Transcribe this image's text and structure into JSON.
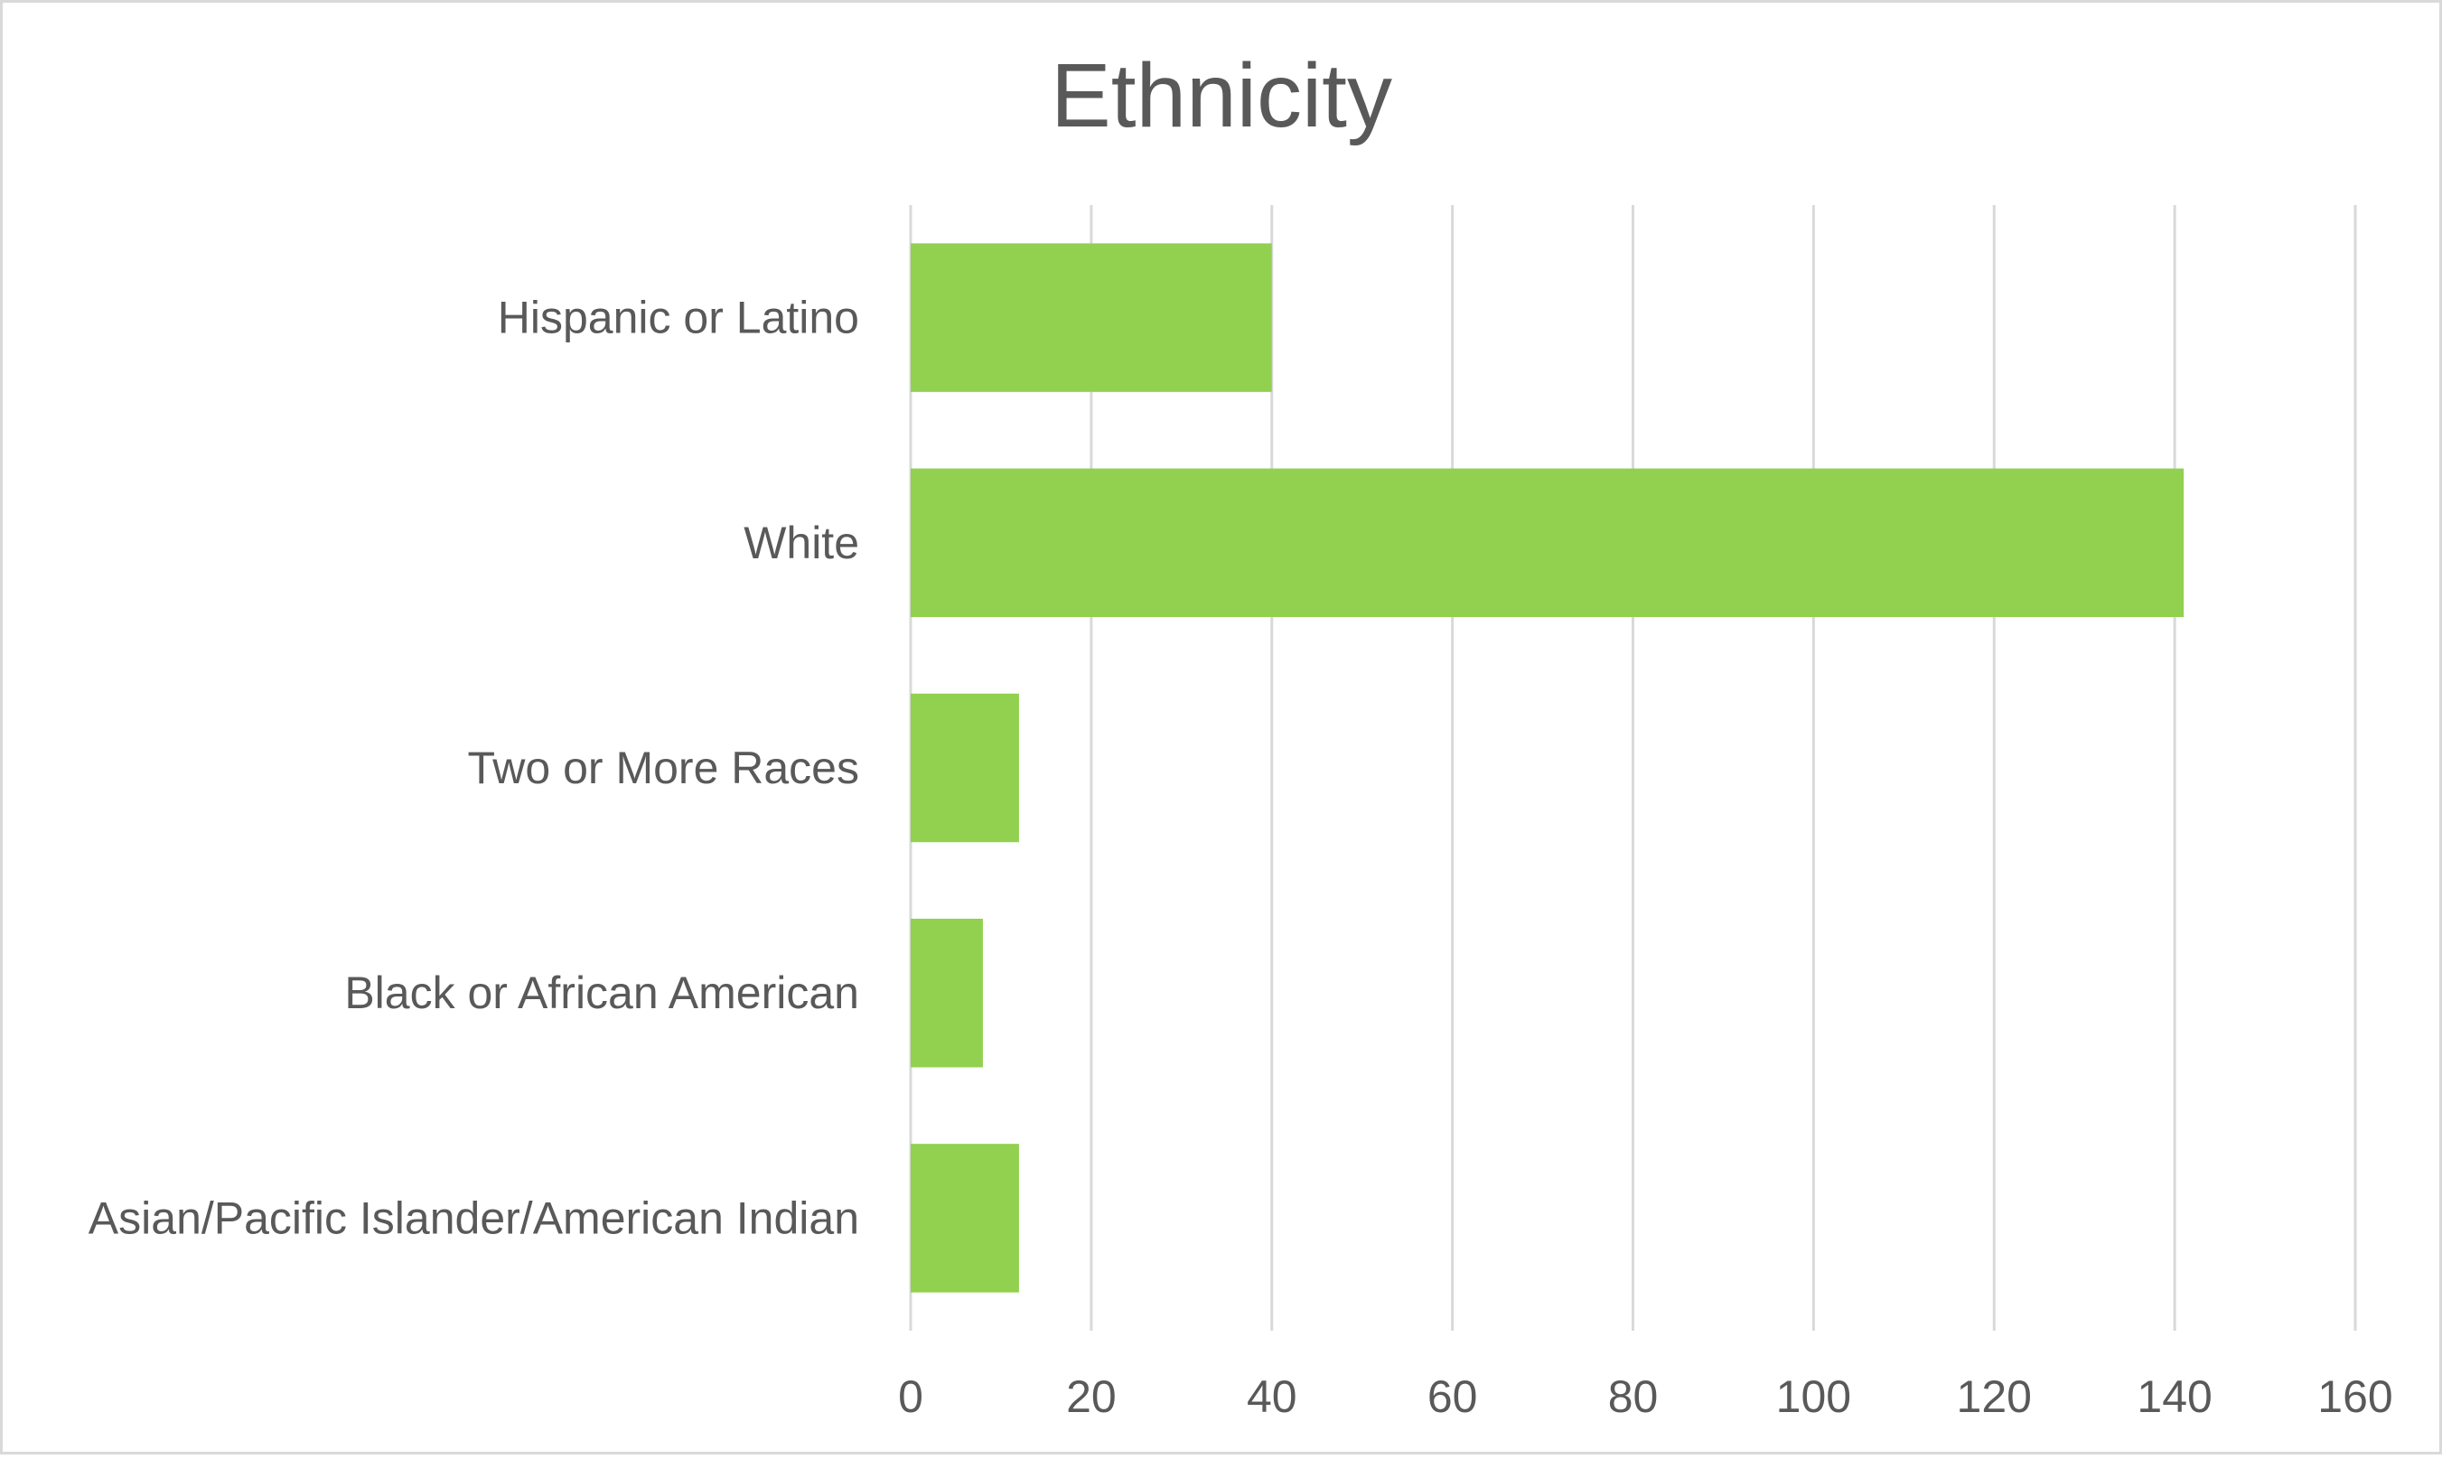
{
  "chart_data": {
    "type": "bar",
    "orientation": "horizontal",
    "title": "Ethnicity",
    "xlabel": "",
    "ylabel": "",
    "categories": [
      "Hispanic or Latino",
      "White",
      "Two or More Races",
      "Black or African American",
      "Asian/Pacific Islander/American Indian"
    ],
    "values": [
      40,
      141,
      12,
      8,
      12
    ],
    "xlim": [
      0,
      160
    ],
    "x_ticks": [
      "0",
      "20",
      "40",
      "60",
      "80",
      "100",
      "120",
      "140",
      "160"
    ],
    "grid": "vertical",
    "legend": "none",
    "colors": {
      "bar": "#92d050",
      "grid": "#d9d9d9",
      "text": "#595959",
      "border": "#d9d9d9"
    }
  }
}
